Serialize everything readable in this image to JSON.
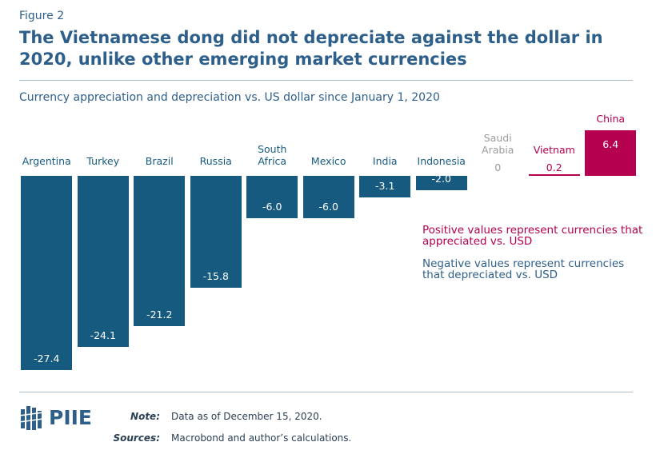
{
  "figure_label": "Figure 2",
  "logo": "PIIE",
  "note": {
    "label": "Note:",
    "text": "Data as of December 15, 2020."
  },
  "sources": {
    "label": "Sources:",
    "text": "Macrobond and author’s calculations."
  },
  "chart_data": {
    "type": "bar",
    "title": "The Vietnamese dong did not depreciate against the dollar in 2020, unlike other emerging market currencies",
    "subtitle": "Currency appreciation and depreciation vs. US dollar since January 1, 2020",
    "categories": [
      "Argentina",
      "Turkey",
      "Brazil",
      "Russia",
      "South Africa",
      "Mexico",
      "India",
      "Indonesia",
      "Saudi Arabia",
      "Vietnam",
      "China"
    ],
    "values": [
      -27.4,
      -24.1,
      -21.2,
      -15.8,
      -6.0,
      -6.0,
      -3.1,
      -2.0,
      0,
      0.2,
      6.4
    ],
    "value_labels": [
      "-27.4",
      "-24.1",
      "-21.2",
      "-15.8",
      "-6.0",
      "-6.0",
      "-3.1",
      "-2.0",
      "0",
      "0.2",
      "6.4"
    ],
    "colors": [
      "#175a80",
      "#175a80",
      "#175a80",
      "#175a80",
      "#175a80",
      "#175a80",
      "#175a80",
      "#175a80",
      "#9a9a9a",
      "#b5004f",
      "#b5004f"
    ],
    "annotations": [
      {
        "text": "Positive values represent currencies that appreciated vs. USD",
        "color": "#b5004f"
      },
      {
        "text": "Negative values represent currencies that depreciated vs. USD",
        "color": "#2e5f8a"
      }
    ]
  }
}
